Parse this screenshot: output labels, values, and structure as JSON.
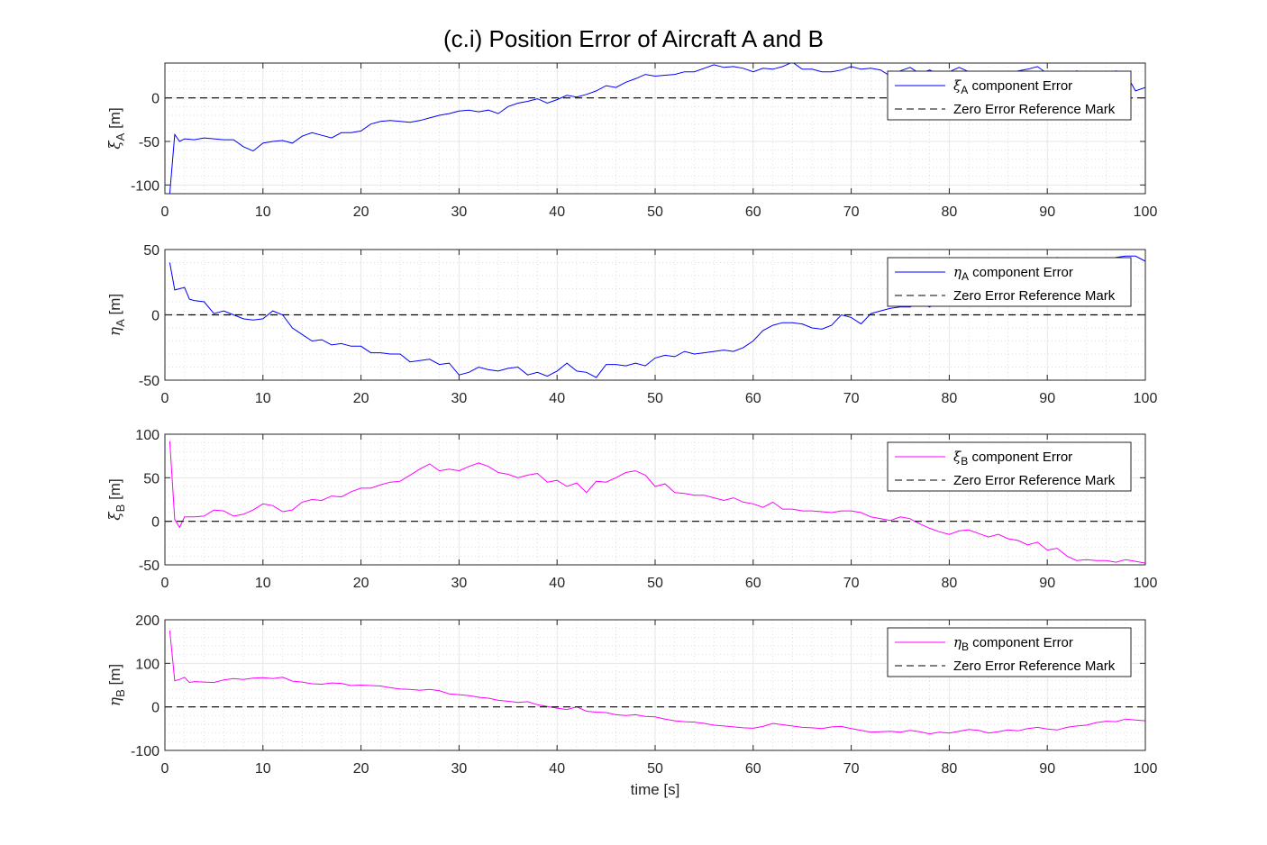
{
  "figure": {
    "title": "(c.i) Position Error of Aircraft A and B",
    "shared_xlabel": "time [s]"
  },
  "colors": {
    "series_A": "#0000ff",
    "series_B": "#ff00ff",
    "reference": "#000000",
    "grid": "#e6e6e6",
    "axes": "#262626"
  },
  "chart_data": [
    {
      "type": "line",
      "ylabel_symbol": "ξ",
      "ylabel_subscript": "A",
      "ylabel_unit": "[m]",
      "xlabel": "",
      "xlim": [
        0,
        100
      ],
      "ylim": [
        -110,
        40
      ],
      "xticks": [
        0,
        10,
        20,
        30,
        40,
        50,
        60,
        70,
        80,
        90,
        100
      ],
      "yticks": [
        -100,
        -50,
        0
      ],
      "grid": "on",
      "legend_location": "top-right",
      "series": [
        {
          "name_symbol": "ξ",
          "name_subscript": "A",
          "name_suffix": " component Error",
          "color": "#0000ff",
          "x": [
            0.5,
            1,
            1.5,
            2,
            3,
            4,
            5,
            6,
            7,
            8,
            9,
            10,
            11,
            12,
            13,
            14,
            15,
            16,
            17,
            18,
            19,
            20,
            21,
            22,
            23,
            24,
            25,
            26,
            27,
            28,
            29,
            30,
            31,
            32,
            33,
            34,
            35,
            36,
            37,
            38,
            39,
            40,
            41,
            42,
            43,
            44,
            45,
            46,
            47,
            48,
            49,
            50,
            51,
            52,
            53,
            54,
            55,
            56,
            57,
            58,
            59,
            60,
            61,
            62,
            63,
            64,
            65,
            66,
            67,
            68,
            69,
            70,
            71,
            72,
            73,
            74,
            75,
            76,
            77,
            78,
            79,
            80,
            81,
            82,
            83,
            84,
            85,
            86,
            87,
            88,
            89,
            90,
            91,
            92,
            93,
            94,
            95,
            96,
            97,
            98,
            99,
            100
          ],
          "y": [
            -110,
            -42,
            -50,
            -47,
            -48,
            -46,
            -47,
            -48,
            -48,
            -56,
            -61,
            -52,
            -50,
            -49,
            -52,
            -44,
            -40,
            -43,
            -46,
            -40,
            -40,
            -38,
            -30,
            -27,
            -26,
            -27,
            -28,
            -26,
            -23,
            -20,
            -18,
            -15,
            -14,
            -16,
            -14,
            -18,
            -10,
            -6,
            -4,
            -1,
            -6,
            -2,
            3,
            1,
            4,
            8,
            14,
            12,
            18,
            22,
            27,
            25,
            26,
            27,
            30,
            30,
            34,
            38,
            35,
            36,
            34,
            30,
            34,
            33,
            36,
            41,
            33,
            33,
            30,
            30,
            32,
            36,
            33,
            34,
            32,
            25,
            31,
            35,
            28,
            32,
            27,
            30,
            35,
            30,
            26,
            29,
            28,
            27,
            31,
            33,
            36,
            28,
            25,
            27,
            31,
            28,
            30,
            26,
            31,
            28,
            8,
            12
          ]
        },
        {
          "name": "Zero Error Reference Mark",
          "color": "#000000",
          "style": "dashed",
          "x": [
            0,
            100
          ],
          "y": [
            0,
            0
          ]
        }
      ]
    },
    {
      "type": "line",
      "ylabel_symbol": "η",
      "ylabel_subscript": "A",
      "ylabel_unit": "[m]",
      "xlabel": "",
      "xlim": [
        0,
        100
      ],
      "ylim": [
        -50,
        50
      ],
      "xticks": [
        0,
        10,
        20,
        30,
        40,
        50,
        60,
        70,
        80,
        90,
        100
      ],
      "yticks": [
        -50,
        0,
        50
      ],
      "grid": "on",
      "legend_location": "top-right",
      "series": [
        {
          "name_symbol": "η",
          "name_subscript": "A",
          "name_suffix": " component Error",
          "color": "#0000ff",
          "x": [
            0.5,
            1,
            1.5,
            2,
            2.5,
            3,
            4,
            5,
            6,
            7,
            8,
            9,
            10,
            11,
            12,
            13,
            14,
            15,
            16,
            17,
            18,
            19,
            20,
            21,
            22,
            23,
            24,
            25,
            26,
            27,
            28,
            29,
            30,
            31,
            32,
            33,
            34,
            35,
            36,
            37,
            38,
            39,
            40,
            41,
            42,
            43,
            44,
            45,
            46,
            47,
            48,
            49,
            50,
            51,
            52,
            53,
            54,
            55,
            56,
            57,
            58,
            59,
            60,
            61,
            62,
            63,
            64,
            65,
            66,
            67,
            68,
            69,
            70,
            71,
            72,
            73,
            74,
            75,
            76,
            77,
            78,
            79,
            80,
            81,
            82,
            83,
            84,
            85,
            86,
            87,
            88,
            89,
            90,
            91,
            92,
            93,
            94,
            95,
            96,
            97,
            98,
            99,
            100
          ],
          "y": [
            40,
            19,
            20,
            21,
            12,
            11,
            10,
            1,
            3,
            0,
            -3,
            -4,
            -3,
            3,
            0,
            -10,
            -15,
            -20,
            -19,
            -23,
            -22,
            -24,
            -24,
            -29,
            -29,
            -30,
            -30,
            -36,
            -35,
            -34,
            -38,
            -37,
            -46,
            -44,
            -40,
            -42,
            -43,
            -41,
            -40,
            -46,
            -44,
            -47,
            -43,
            -37,
            -43,
            -44,
            -48,
            -38,
            -38,
            -39,
            -37,
            -39,
            -33,
            -31,
            -32,
            -28,
            -30,
            -29,
            -28,
            -27,
            -28,
            -25,
            -20,
            -12,
            -8,
            -6,
            -6,
            -7,
            -10,
            -11,
            -8,
            0,
            -2,
            -7,
            1,
            3,
            5,
            6,
            6,
            9,
            6,
            10,
            14,
            18,
            22,
            26,
            21,
            19,
            25,
            29,
            34,
            40,
            38,
            44,
            36,
            41,
            38,
            42,
            40,
            44,
            45,
            45,
            41
          ]
        },
        {
          "name": "Zero Error Reference Mark",
          "color": "#000000",
          "style": "dashed",
          "x": [
            0,
            100
          ],
          "y": [
            0,
            0
          ]
        }
      ]
    },
    {
      "type": "line",
      "ylabel_symbol": "ξ",
      "ylabel_subscript": "B",
      "ylabel_unit": "[m]",
      "xlabel": "",
      "xlim": [
        0,
        100
      ],
      "ylim": [
        -50,
        100
      ],
      "xticks": [
        0,
        10,
        20,
        30,
        40,
        50,
        60,
        70,
        80,
        90,
        100
      ],
      "yticks": [
        -50,
        0,
        50,
        100
      ],
      "grid": "on",
      "legend_location": "top-right",
      "series": [
        {
          "name_symbol": "ξ",
          "name_subscript": "B",
          "name_suffix": " component Error",
          "color": "#ff00ff",
          "x": [
            0.5,
            1,
            1.5,
            2,
            3,
            4,
            5,
            6,
            7,
            8,
            9,
            10,
            11,
            12,
            13,
            14,
            15,
            16,
            17,
            18,
            19,
            20,
            21,
            22,
            23,
            24,
            25,
            26,
            27,
            28,
            29,
            30,
            31,
            32,
            33,
            34,
            35,
            36,
            37,
            38,
            39,
            40,
            41,
            42,
            43,
            44,
            45,
            46,
            47,
            48,
            49,
            50,
            51,
            52,
            53,
            54,
            55,
            56,
            57,
            58,
            59,
            60,
            61,
            62,
            63,
            64,
            65,
            66,
            67,
            68,
            69,
            70,
            71,
            72,
            73,
            74,
            75,
            76,
            77,
            78,
            79,
            80,
            81,
            82,
            83,
            84,
            85,
            86,
            87,
            88,
            89,
            90,
            91,
            92,
            93,
            94,
            95,
            96,
            97,
            98,
            99,
            100
          ],
          "y": [
            92,
            2,
            -7,
            5,
            5,
            6,
            13,
            12,
            6,
            8,
            13,
            20,
            18,
            11,
            13,
            22,
            25,
            24,
            29,
            28,
            34,
            38,
            38,
            42,
            45,
            46,
            53,
            60,
            66,
            58,
            60,
            58,
            63,
            67,
            63,
            56,
            54,
            50,
            53,
            55,
            45,
            47,
            40,
            44,
            33,
            46,
            45,
            50,
            56,
            58,
            53,
            40,
            43,
            33,
            32,
            30,
            30,
            27,
            24,
            27,
            22,
            20,
            16,
            22,
            14,
            14,
            12,
            12,
            11,
            10,
            12,
            12,
            10,
            5,
            3,
            1,
            5,
            3,
            -3,
            -8,
            -12,
            -15,
            -11,
            -10,
            -14,
            -18,
            -15,
            -20,
            -22,
            -27,
            -24,
            -33,
            -31,
            -40,
            -45,
            -44,
            -45,
            -45,
            -47,
            -44,
            -46,
            -48
          ]
        },
        {
          "name": "Zero Error Reference Mark",
          "color": "#000000",
          "style": "dashed",
          "x": [
            0,
            100
          ],
          "y": [
            0,
            0
          ]
        }
      ]
    },
    {
      "type": "line",
      "ylabel_symbol": "η",
      "ylabel_subscript": "B",
      "ylabel_unit": "[m]",
      "xlabel": "time [s]",
      "xlim": [
        0,
        100
      ],
      "ylim": [
        -100,
        200
      ],
      "xticks": [
        0,
        10,
        20,
        30,
        40,
        50,
        60,
        70,
        80,
        90,
        100
      ],
      "yticks": [
        -100,
        0,
        100,
        200
      ],
      "grid": "on",
      "legend_location": "top-right",
      "series": [
        {
          "name_symbol": "η",
          "name_subscript": "B",
          "name_suffix": " component Error",
          "color": "#ff00ff",
          "x": [
            0.5,
            1,
            1.5,
            2,
            2.5,
            3,
            4,
            5,
            6,
            7,
            8,
            9,
            10,
            11,
            12,
            13,
            14,
            15,
            16,
            17,
            18,
            19,
            20,
            21,
            22,
            23,
            24,
            25,
            26,
            27,
            28,
            29,
            30,
            31,
            32,
            33,
            34,
            35,
            36,
            37,
            38,
            39,
            40,
            41,
            42,
            43,
            44,
            45,
            46,
            47,
            48,
            49,
            50,
            51,
            52,
            53,
            54,
            55,
            56,
            57,
            58,
            59,
            60,
            61,
            62,
            63,
            64,
            65,
            66,
            67,
            68,
            69,
            70,
            71,
            72,
            73,
            74,
            75,
            76,
            77,
            78,
            79,
            80,
            81,
            82,
            83,
            84,
            85,
            86,
            87,
            88,
            89,
            90,
            91,
            92,
            93,
            94,
            95,
            96,
            97,
            98,
            99,
            100
          ],
          "y": [
            175,
            60,
            63,
            68,
            56,
            58,
            57,
            56,
            62,
            65,
            63,
            66,
            67,
            65,
            68,
            59,
            57,
            53,
            52,
            55,
            54,
            49,
            50,
            49,
            48,
            44,
            41,
            40,
            38,
            40,
            37,
            30,
            28,
            26,
            22,
            20,
            15,
            13,
            10,
            12,
            5,
            1,
            -3,
            -6,
            0,
            -10,
            -12,
            -13,
            -18,
            -20,
            -18,
            -22,
            -23,
            -28,
            -32,
            -34,
            -35,
            -38,
            -42,
            -44,
            -46,
            -48,
            -49,
            -45,
            -38,
            -41,
            -44,
            -47,
            -48,
            -50,
            -46,
            -45,
            -50,
            -54,
            -58,
            -57,
            -56,
            -58,
            -54,
            -57,
            -62,
            -58,
            -60,
            -56,
            -52,
            -54,
            -60,
            -57,
            -53,
            -55,
            -50,
            -47,
            -51,
            -53,
            -47,
            -44,
            -42,
            -36,
            -33,
            -34,
            -28,
            -30,
            -32
          ]
        },
        {
          "name": "Zero Error Reference Mark",
          "color": "#000000",
          "style": "dashed",
          "x": [
            0,
            100
          ],
          "y": [
            0,
            0
          ]
        }
      ]
    }
  ]
}
